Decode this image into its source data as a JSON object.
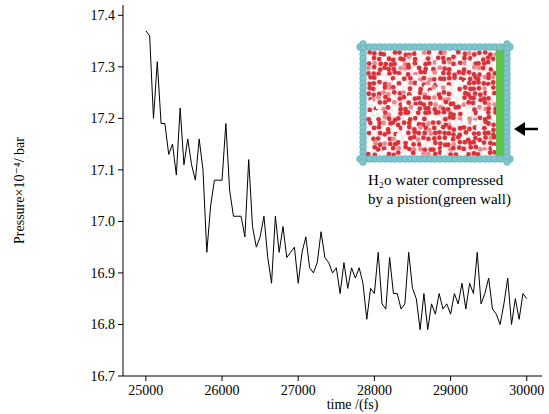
{
  "chart_data": {
    "type": "line",
    "x_label": "time /(fs)",
    "y_label": "Pressure×10⁻⁴/ bar",
    "annotation": [
      "H₂o water compressed",
      "by a pistion(green wall)"
    ],
    "color": "#000000",
    "xlim": [
      24700,
      30200
    ],
    "ylim": [
      16.7,
      17.42
    ],
    "xticks": [
      25000,
      26000,
      27000,
      28000,
      29000,
      30000
    ],
    "yticks": [
      16.7,
      16.8,
      16.9,
      {
        "value": 17,
        "label": "17.0"
      },
      17.1,
      17.2,
      17.3,
      17.4
    ],
    "grid": false,
    "x": [
      25000,
      25050,
      25100,
      25150,
      25200,
      25250,
      25300,
      25350,
      25400,
      25450,
      25500,
      25550,
      25600,
      25650,
      25700,
      25750,
      25800,
      25850,
      25900,
      25950,
      26000,
      26050,
      26100,
      26150,
      26200,
      26250,
      26300,
      26350,
      26400,
      26450,
      26500,
      26550,
      26600,
      26650,
      26700,
      26750,
      26800,
      26850,
      26900,
      26950,
      27000,
      27050,
      27100,
      27150,
      27200,
      27250,
      27300,
      27350,
      27400,
      27450,
      27500,
      27550,
      27600,
      27650,
      27700,
      27750,
      27800,
      27850,
      27900,
      27950,
      28000,
      28050,
      28100,
      28150,
      28200,
      28250,
      28300,
      28350,
      28400,
      28450,
      28500,
      28550,
      28600,
      28650,
      28700,
      28750,
      28800,
      28850,
      28900,
      28950,
      29000,
      29050,
      29100,
      29150,
      29200,
      29250,
      29300,
      29350,
      29400,
      29450,
      29500,
      29550,
      29600,
      29650,
      29700,
      29750,
      29800,
      29850,
      29900,
      29950,
      30000
    ],
    "values": [
      17.37,
      17.36,
      17.2,
      17.31,
      17.19,
      17.19,
      17.13,
      17.15,
      17.09,
      17.22,
      17.11,
      17.16,
      17.11,
      17.08,
      17.16,
      17.1,
      16.94,
      17.03,
      17.08,
      17.08,
      17.08,
      17.19,
      17.06,
      17.01,
      17.01,
      17.01,
      16.97,
      17.12,
      16.99,
      16.95,
      16.97,
      17.01,
      16.93,
      16.88,
      17.01,
      16.94,
      16.99,
      16.93,
      16.94,
      16.95,
      16.88,
      16.94,
      16.97,
      16.91,
      16.9,
      16.92,
      16.98,
      16.93,
      16.92,
      16.9,
      16.91,
      16.86,
      16.92,
      16.87,
      16.91,
      16.89,
      16.91,
      16.88,
      16.81,
      16.87,
      16.86,
      16.94,
      16.84,
      16.83,
      16.93,
      16.86,
      16.86,
      16.83,
      16.84,
      16.94,
      16.87,
      16.85,
      16.79,
      16.86,
      16.79,
      16.84,
      16.82,
      16.86,
      16.83,
      16.84,
      16.82,
      16.86,
      16.84,
      16.88,
      16.83,
      16.88,
      16.86,
      16.94,
      16.84,
      16.86,
      16.89,
      16.83,
      16.82,
      16.8,
      16.84,
      16.89,
      16.8,
      16.85,
      16.81,
      16.86,
      16.85
    ]
  }
}
